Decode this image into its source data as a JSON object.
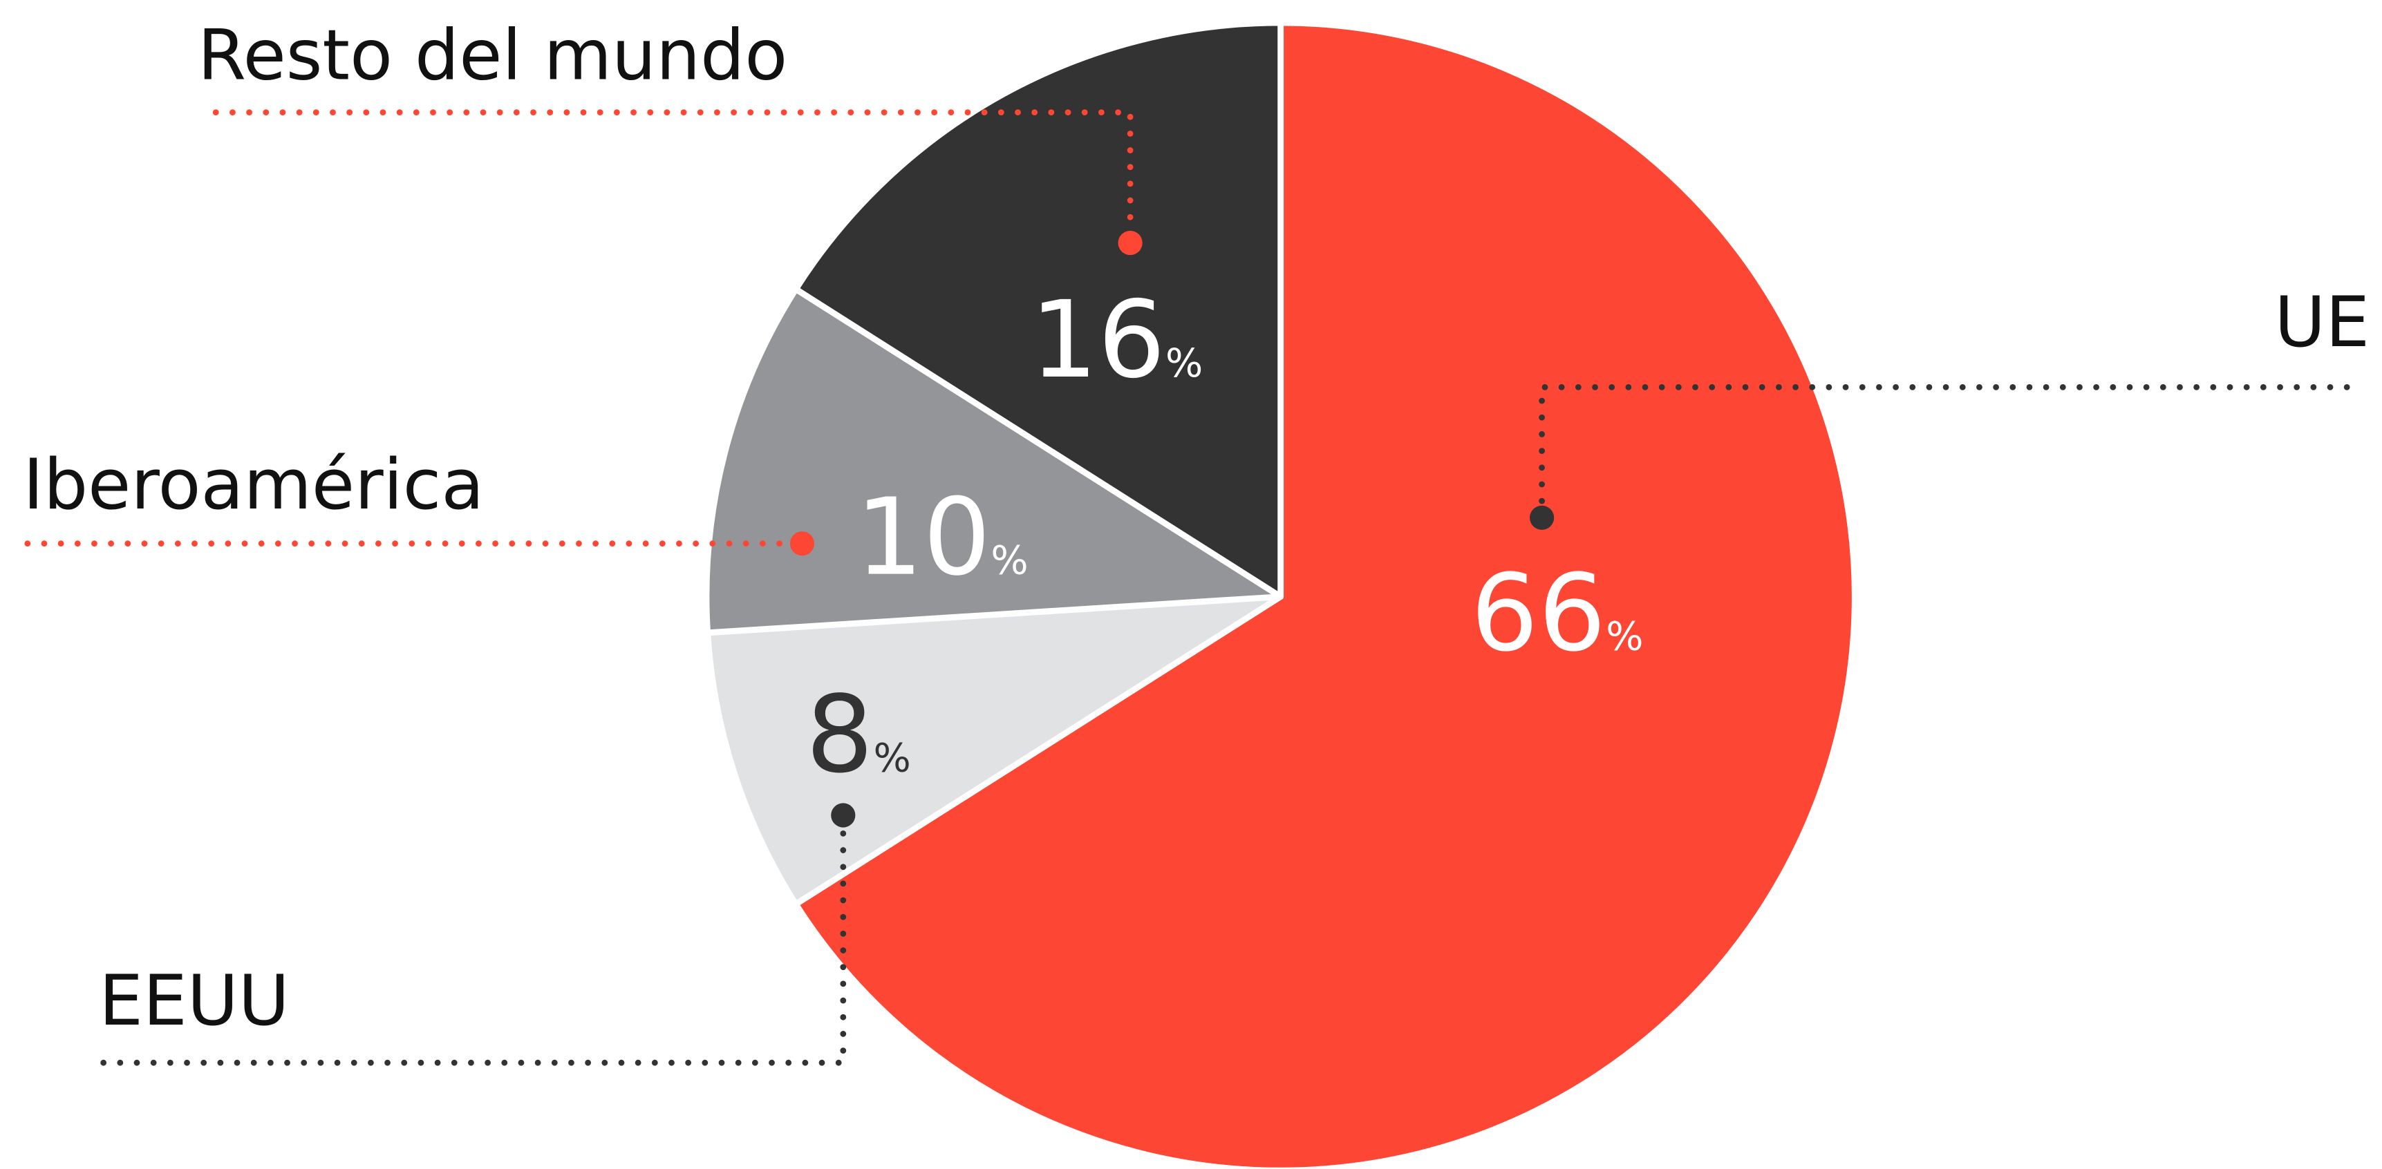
{
  "chart_data": {
    "type": "pie",
    "categories": [
      "UE",
      "EEUU",
      "Iberoamérica",
      "Resto del mundo"
    ],
    "values": [
      66,
      8,
      10,
      16
    ],
    "unit": "%",
    "colors": [
      "#fd4634",
      "#e1e2e4",
      "#949598",
      "#333333"
    ]
  }
}
